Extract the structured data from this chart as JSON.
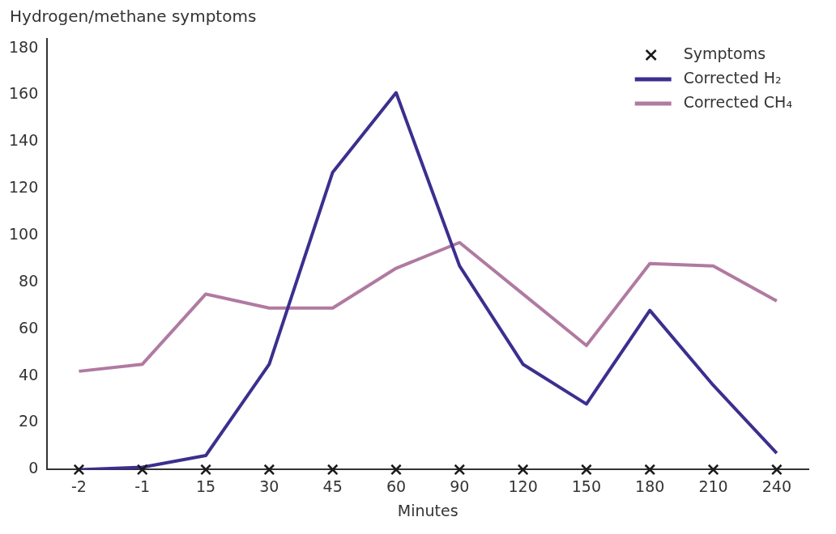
{
  "chart_data": {
    "type": "line",
    "ylabel": "Hydrogen/methane symptoms",
    "xlabel": "Minutes",
    "categories": [
      "-2",
      "-1",
      "15",
      "30",
      "45",
      "60",
      "90",
      "120",
      "150",
      "180",
      "210",
      "240"
    ],
    "series": [
      {
        "name": "Symptoms",
        "type": "scatter",
        "marker": "cross",
        "color": "#1a1a1a",
        "values": [
          0,
          0,
          0,
          0,
          0,
          0,
          0,
          0,
          0,
          0,
          0,
          0
        ]
      },
      {
        "name": "Corrected H₂",
        "marker": "none",
        "color": "#3b2f8f",
        "values": [
          0,
          1,
          6,
          45,
          127,
          161,
          87,
          45,
          28,
          68,
          36,
          7
        ]
      },
      {
        "name": "Corrected CH₄",
        "marker": "none",
        "color": "#b07aa1",
        "values": [
          42,
          45,
          75,
          69,
          69,
          86,
          97,
          75,
          53,
          88,
          87,
          72
        ]
      }
    ],
    "ylim": [
      0,
      184
    ],
    "yticks": [
      0,
      20,
      40,
      60,
      80,
      100,
      120,
      140,
      160,
      180
    ],
    "grid": false,
    "legend": "top right",
    "line_style": "solid"
  }
}
